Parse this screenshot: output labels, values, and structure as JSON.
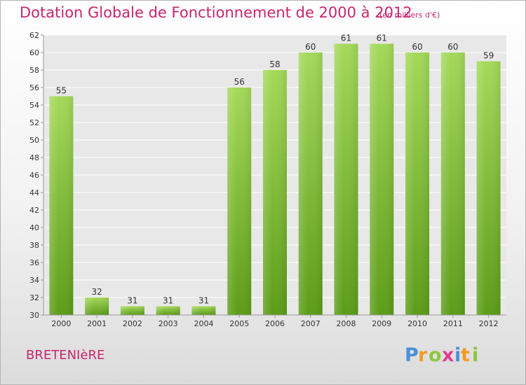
{
  "title": "Dotation Globale de Fonctionnement de 2000 à 2012",
  "subtitle": "(en milliers d'€)",
  "city": "BRETENIèRE",
  "logo_text": "Proxiti",
  "colors": {
    "title": "#c8256e",
    "bar_top": "#9fd454",
    "bar_bottom": "#5f9f1a",
    "grid": "#ffffff",
    "axis_text": "#333333"
  },
  "chart_data": {
    "type": "bar",
    "title": "Dotation Globale de Fonctionnement de 2000 à 2012",
    "subtitle": "(en milliers d'€)",
    "xlabel": "",
    "ylabel": "",
    "categories": [
      "2000",
      "2001",
      "2002",
      "2003",
      "2004",
      "2005",
      "2006",
      "2007",
      "2008",
      "2009",
      "2010",
      "2011",
      "2012"
    ],
    "values": [
      55,
      32,
      31,
      31,
      31,
      56,
      58,
      60,
      61,
      61,
      60,
      60,
      59
    ],
    "ylim": [
      30,
      62
    ],
    "yticks": [
      30,
      32,
      34,
      36,
      38,
      40,
      42,
      44,
      46,
      48,
      50,
      52,
      54,
      56,
      58,
      60,
      62
    ],
    "grid": true,
    "data_labels": true
  }
}
